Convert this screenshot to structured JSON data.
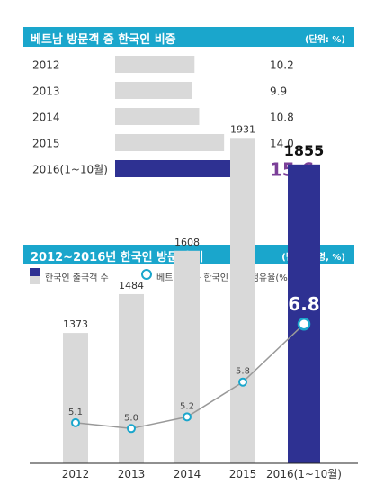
{
  "chart_data": [
    {
      "type": "bar",
      "orientation": "horizontal",
      "title": "베트남 방문객 중 한국인 비중",
      "unit": "(단위: %)",
      "categories": [
        "2012",
        "2013",
        "2014",
        "2015",
        "2016(1~10월)"
      ],
      "values": [
        10.2,
        9.9,
        10.8,
        14.0,
        15.6
      ],
      "value_labels": [
        "10.2",
        "9.9",
        "10.8",
        "14.0",
        "15.6"
      ],
      "highlight_index": 4,
      "bar_color": "#d9d9d9",
      "highlight_color": "#2e3192",
      "highlight_label_color": "#7b3f98"
    },
    {
      "type": "bar+line",
      "title": "2012~2016년 한국인 방문 추이",
      "unit": "(단위: 만명, %)",
      "categories": [
        "2012",
        "2013",
        "2014",
        "2015",
        "2016(1~10월)"
      ],
      "series": [
        {
          "name": "한국인 출국객 수",
          "type": "bar",
          "values": [
            1373,
            1484,
            1608,
            1931,
            1855
          ],
          "labels": [
            "1373",
            "1484",
            "1608",
            "1931",
            "1855"
          ],
          "color": "#d9d9d9",
          "highlight_color": "#2e3192"
        },
        {
          "name": "베트남 방문 한국인 출국 점유율(%)",
          "type": "line",
          "values": [
            5.1,
            5.0,
            5.2,
            5.8,
            6.8
          ],
          "labels": [
            "5.1",
            "5.0",
            "5.2",
            "5.8",
            "6.8"
          ],
          "line_color": "#999999",
          "marker_color": "#1aa6cc"
        }
      ],
      "highlight_index": 4,
      "legend_swatch_color": "#2e3192"
    }
  ]
}
